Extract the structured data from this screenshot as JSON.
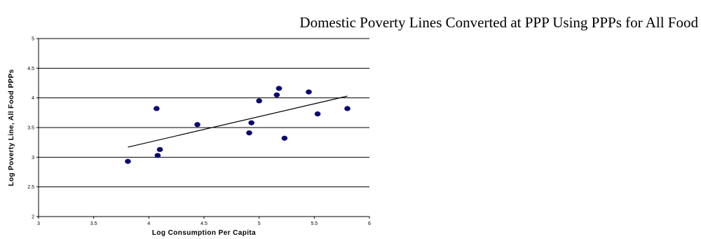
{
  "chart_data": {
    "type": "scatter",
    "title": "Domestic Poverty Lines Converted at PPP Using PPPs for All Food",
    "xlabel": "Log Consumption Per Capita",
    "ylabel": "Log Poverty Line, All Food PPPs",
    "xlim": [
      3,
      6
    ],
    "ylim": [
      2,
      5
    ],
    "x_ticks": [
      "3",
      "3.5",
      "4",
      "4.5",
      "5",
      "5.5",
      "6"
    ],
    "y_ticks": [
      "2",
      "2.5",
      "3",
      "3.5",
      "4",
      "4.5",
      "5"
    ],
    "grid": "horizontal",
    "legend": "none",
    "marker_color": "#0a0a6e",
    "points": [
      {
        "x": 3.81,
        "y": 2.93
      },
      {
        "x": 4.07,
        "y": 3.82
      },
      {
        "x": 4.08,
        "y": 3.03
      },
      {
        "x": 4.1,
        "y": 3.13
      },
      {
        "x": 4.44,
        "y": 3.55
      },
      {
        "x": 4.91,
        "y": 3.41
      },
      {
        "x": 4.93,
        "y": 3.58
      },
      {
        "x": 5.0,
        "y": 3.95
      },
      {
        "x": 5.16,
        "y": 4.05
      },
      {
        "x": 5.18,
        "y": 4.16
      },
      {
        "x": 5.23,
        "y": 3.32
      },
      {
        "x": 5.45,
        "y": 4.1
      },
      {
        "x": 5.53,
        "y": 3.73
      },
      {
        "x": 5.8,
        "y": 3.82
      }
    ],
    "trendline": {
      "x1": 3.81,
      "y1": 3.17,
      "x2": 5.8,
      "y2": 4.03
    }
  }
}
